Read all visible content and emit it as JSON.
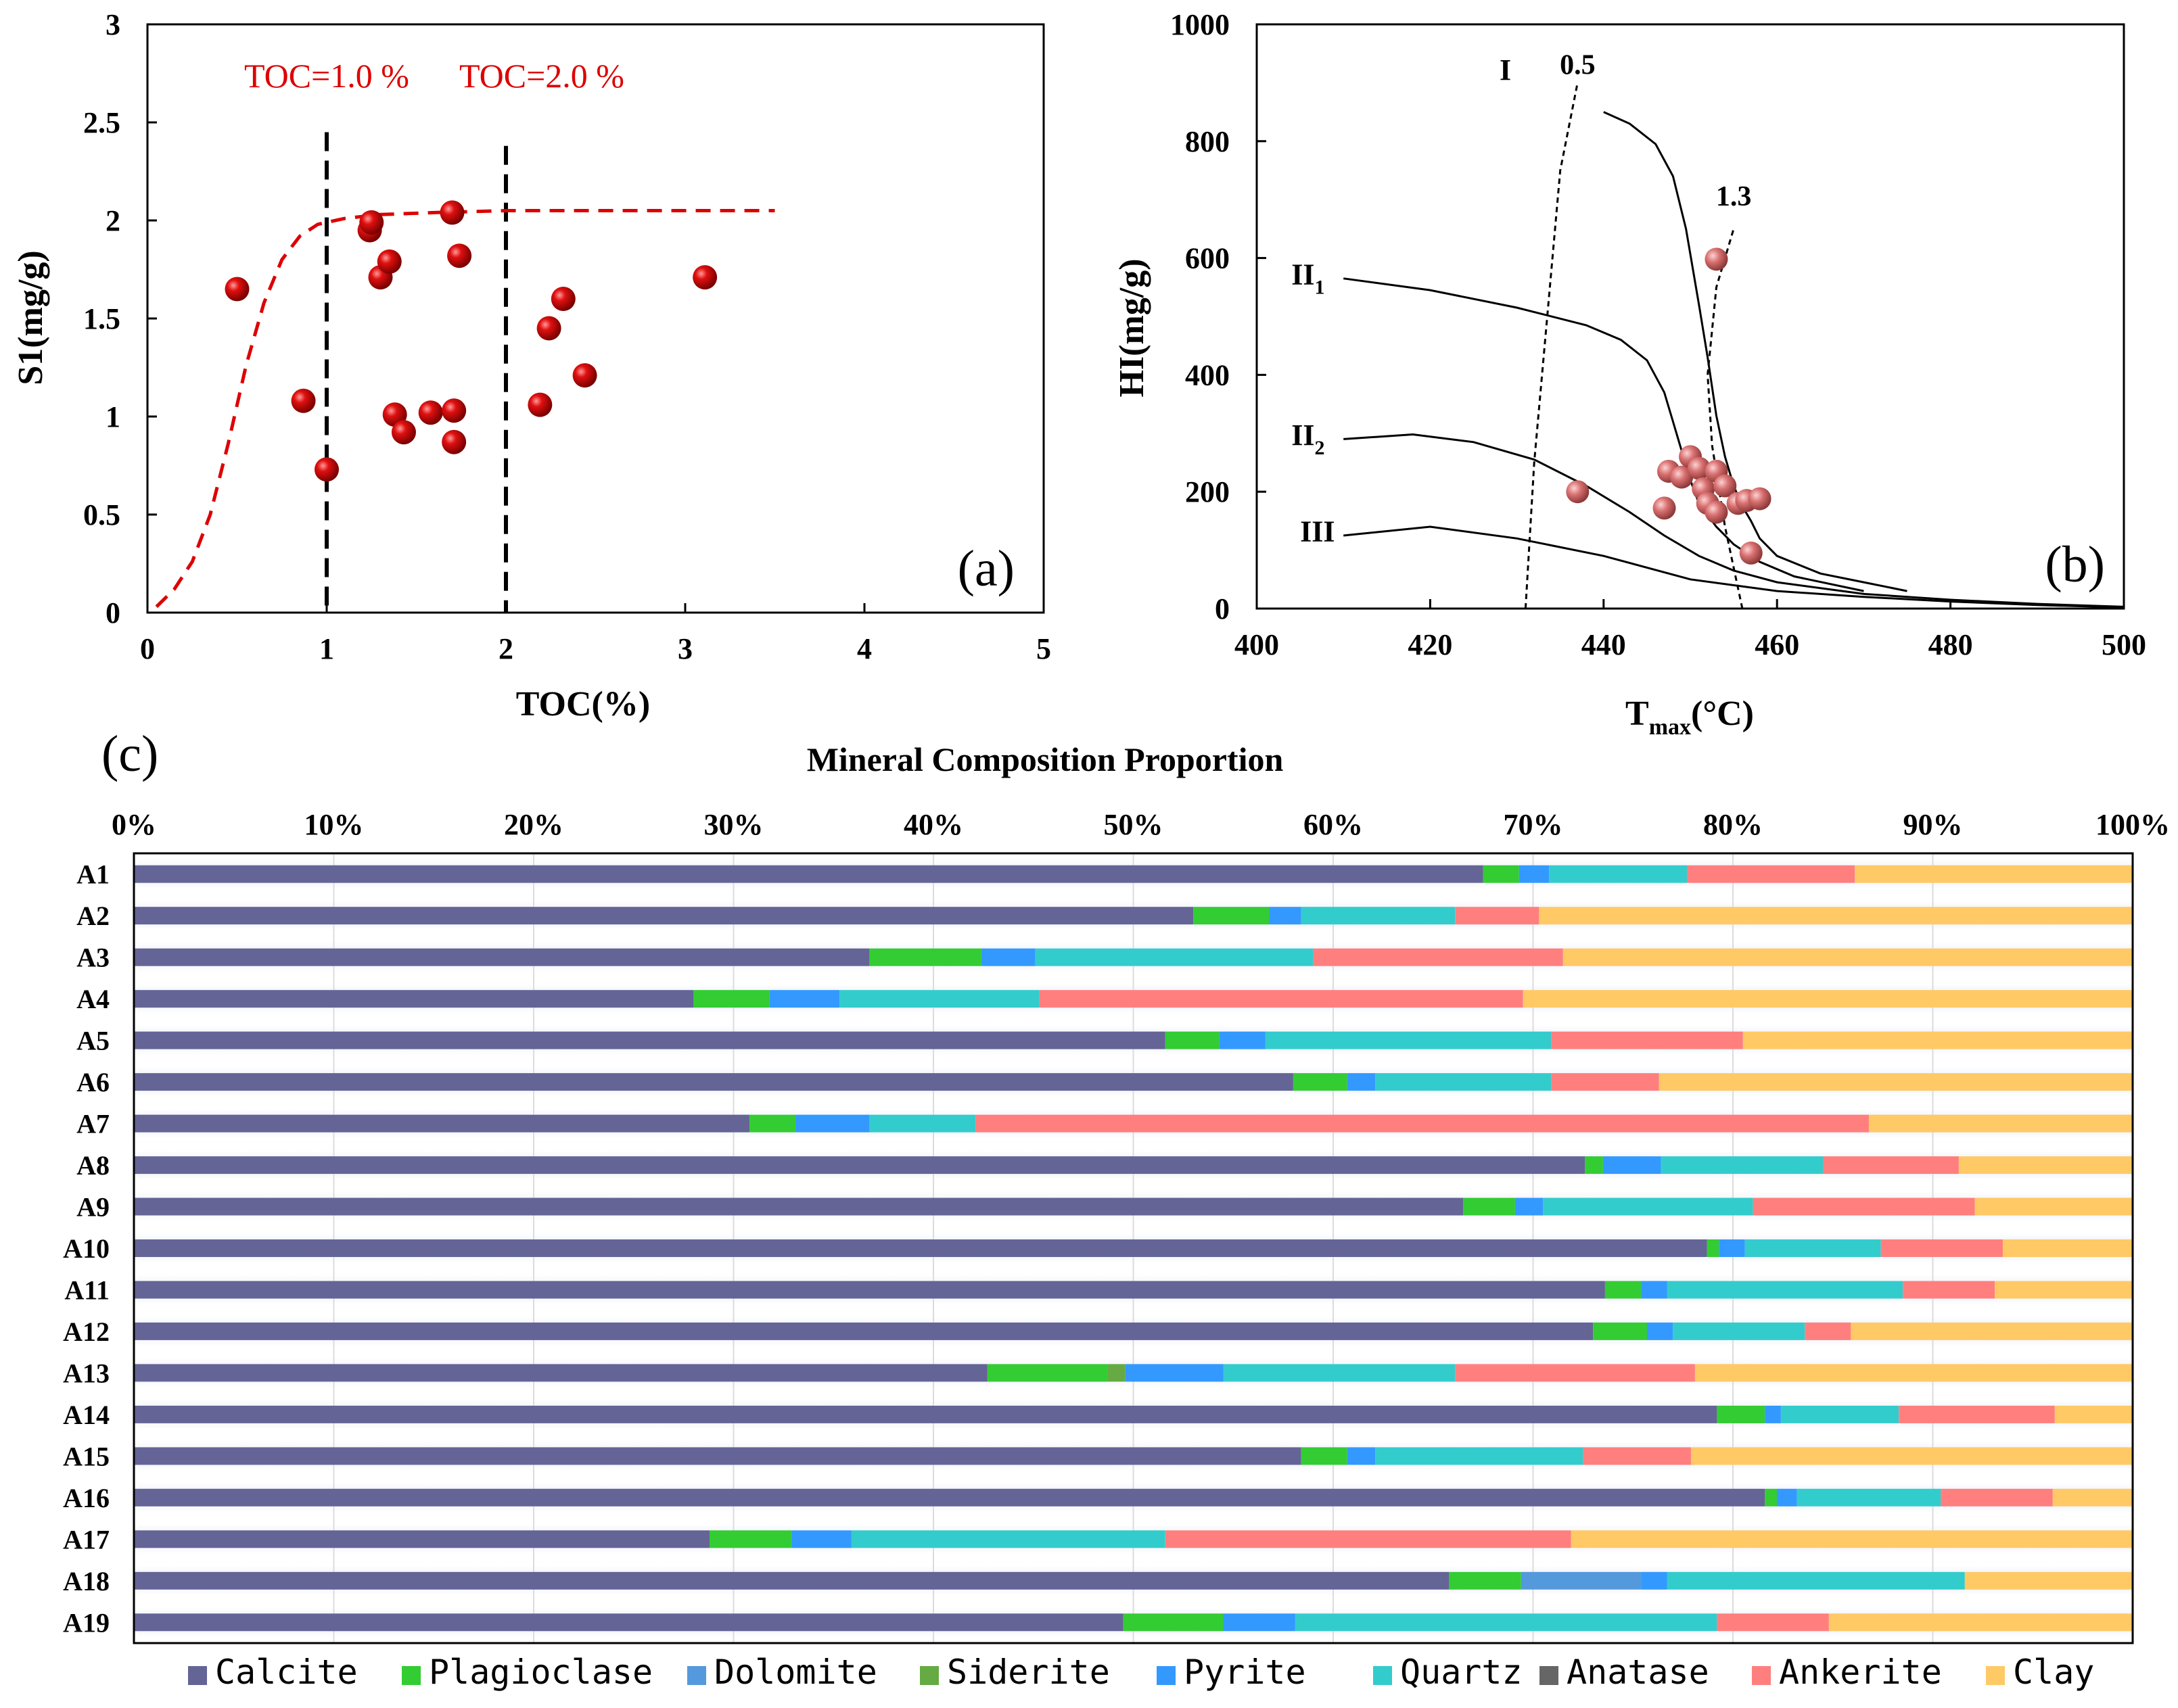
{
  "colors": {
    "Calcite": "#646496",
    "Plagioclase": "#33CC33",
    "Dolomite": "#5599DD",
    "Siderite": "#66AA44",
    "Pyrite": "#3399FF",
    "Quartz": "#33CCCC",
    "Anatase": "#666666",
    "Ankerite": "#FF7F7F",
    "Clay": "#FFC966",
    "scatter_red": "#DD0000",
    "scatter_pink": "#D97070"
  },
  "chart_data": [
    {
      "id": "a",
      "type": "scatter",
      "panel_label": "(a)",
      "title": "",
      "xlabel": "TOC(%)",
      "ylabel": "S1(mg/g)",
      "xlim": [
        0,
        5
      ],
      "ylim": [
        0,
        3
      ],
      "xticks": [
        "0",
        "1",
        "2",
        "3",
        "4",
        "5"
      ],
      "yticks": [
        "0",
        "0.5",
        "1",
        "1.5",
        "2",
        "2.5",
        "3"
      ],
      "annotations": [
        {
          "text": "TOC=1.0 %",
          "x": 1.0,
          "y": 2.68,
          "align": "center"
        },
        {
          "text": "TOC=2.0 %",
          "x": 2.2,
          "y": 2.68,
          "align": "center"
        }
      ],
      "vlines": [
        1.0,
        2.0
      ],
      "trend_curve": [
        [
          0.05,
          0.03
        ],
        [
          0.15,
          0.12
        ],
        [
          0.25,
          0.26
        ],
        [
          0.35,
          0.5
        ],
        [
          0.45,
          0.86
        ],
        [
          0.55,
          1.26
        ],
        [
          0.65,
          1.58
        ],
        [
          0.75,
          1.8
        ],
        [
          0.85,
          1.92
        ],
        [
          0.95,
          1.98
        ],
        [
          1.1,
          2.01
        ],
        [
          1.3,
          2.03
        ],
        [
          1.6,
          2.04
        ],
        [
          2.0,
          2.05
        ],
        [
          2.5,
          2.05
        ],
        [
          3.0,
          2.05
        ],
        [
          3.5,
          2.05
        ]
      ],
      "points": [
        {
          "x": 0.5,
          "y": 1.65
        },
        {
          "x": 0.87,
          "y": 1.08
        },
        {
          "x": 1.0,
          "y": 0.73
        },
        {
          "x": 1.24,
          "y": 1.95
        },
        {
          "x": 1.25,
          "y": 1.99
        },
        {
          "x": 1.3,
          "y": 1.71
        },
        {
          "x": 1.35,
          "y": 1.79
        },
        {
          "x": 1.38,
          "y": 1.01
        },
        {
          "x": 1.43,
          "y": 0.92
        },
        {
          "x": 1.58,
          "y": 1.02
        },
        {
          "x": 1.7,
          "y": 2.04
        },
        {
          "x": 1.71,
          "y": 1.03
        },
        {
          "x": 1.71,
          "y": 0.87
        },
        {
          "x": 1.74,
          "y": 1.82
        },
        {
          "x": 2.19,
          "y": 1.06
        },
        {
          "x": 2.24,
          "y": 1.45
        },
        {
          "x": 2.32,
          "y": 1.6
        },
        {
          "x": 2.44,
          "y": 1.21
        },
        {
          "x": 3.11,
          "y": 1.71
        }
      ]
    },
    {
      "id": "b",
      "type": "scatter",
      "panel_label": "(b)",
      "title": "",
      "xlabel": "Tmax(°C)",
      "xlabel_main": "T",
      "xlabel_sub": "max",
      "xlabel_tail": "(°C)",
      "ylabel": "HI(mg/g)",
      "xlim": [
        400,
        500
      ],
      "ylim": [
        0,
        1000
      ],
      "xticks": [
        "400",
        "420",
        "440",
        "460",
        "480",
        "500"
      ],
      "yticks": [
        "0",
        "200",
        "400",
        "600",
        "800",
        "1000"
      ],
      "type_labels": [
        {
          "text": "I",
          "sub": "",
          "x": 428,
          "y": 905
        },
        {
          "text": "II",
          "sub": "1",
          "x": 404,
          "y": 555
        },
        {
          "text": "II",
          "sub": "2",
          "x": 404,
          "y": 280
        },
        {
          "text": "III",
          "sub": "",
          "x": 405,
          "y": 115
        }
      ],
      "ro_labels": [
        {
          "text": "0.5",
          "x": 437,
          "y": 915
        },
        {
          "text": "1.3",
          "x": 455,
          "y": 690
        }
      ],
      "curves": [
        {
          "name": "I",
          "points": [
            [
              440,
              850
            ],
            [
              443,
              830
            ],
            [
              446,
              795
            ],
            [
              448,
              740
            ],
            [
              449.5,
              650
            ],
            [
              451,
              520
            ],
            [
              452,
              430
            ],
            [
              453,
              330
            ],
            [
              454,
              260
            ],
            [
              455,
              210
            ],
            [
              456,
              175
            ],
            [
              457,
              150
            ],
            [
              458,
              120
            ],
            [
              460,
              90
            ],
            [
              465,
              60
            ],
            [
              470,
              45
            ],
            [
              475,
              30
            ]
          ]
        },
        {
          "name": "II1",
          "points": [
            [
              410,
              565
            ],
            [
              420,
              545
            ],
            [
              430,
              515
            ],
            [
              438,
              485
            ],
            [
              442,
              460
            ],
            [
              445,
              425
            ],
            [
              447,
              370
            ],
            [
              448,
              320
            ],
            [
              449,
              270
            ],
            [
              450,
              220
            ],
            [
              451,
              180
            ],
            [
              453,
              140
            ],
            [
              455,
              110
            ],
            [
              458,
              80
            ],
            [
              462,
              55
            ],
            [
              470,
              30
            ]
          ]
        },
        {
          "name": "II2",
          "points": [
            [
              410,
              290
            ],
            [
              418,
              298
            ],
            [
              425,
              285
            ],
            [
              432,
              255
            ],
            [
              438,
              210
            ],
            [
              443,
              165
            ],
            [
              447,
              125
            ],
            [
              451,
              90
            ],
            [
              455,
              65
            ],
            [
              460,
              45
            ],
            [
              470,
              25
            ],
            [
              480,
              15
            ],
            [
              490,
              8
            ],
            [
              500,
              3
            ]
          ]
        },
        {
          "name": "III",
          "points": [
            [
              410,
              125
            ],
            [
              420,
              140
            ],
            [
              430,
              120
            ],
            [
              440,
              90
            ],
            [
              450,
              50
            ],
            [
              460,
              30
            ],
            [
              470,
              20
            ],
            [
              480,
              12
            ],
            [
              490,
              6
            ],
            [
              500,
              2
            ]
          ]
        }
      ],
      "ro_lines": [
        {
          "name": "0.5",
          "points": [
            [
              431,
              0
            ],
            [
              432,
              250
            ],
            [
              433.5,
              500
            ],
            [
              435,
              750
            ],
            [
              437,
              900
            ]
          ]
        },
        {
          "name": "1.3",
          "points": [
            [
              456,
              0
            ],
            [
              454,
              140
            ],
            [
              452.5,
              280
            ],
            [
              452,
              400
            ],
            [
              453,
              550
            ],
            [
              455,
              650
            ]
          ]
        }
      ],
      "points": [
        {
          "x": 437,
          "y": 200
        },
        {
          "x": 447,
          "y": 172
        },
        {
          "x": 447.5,
          "y": 235
        },
        {
          "x": 449,
          "y": 225
        },
        {
          "x": 450,
          "y": 260
        },
        {
          "x": 451,
          "y": 240
        },
        {
          "x": 451.5,
          "y": 205
        },
        {
          "x": 452,
          "y": 180
        },
        {
          "x": 453,
          "y": 235
        },
        {
          "x": 453,
          "y": 165
        },
        {
          "x": 454,
          "y": 210
        },
        {
          "x": 455.5,
          "y": 180
        },
        {
          "x": 456.5,
          "y": 185
        },
        {
          "x": 457,
          "y": 95
        },
        {
          "x": 458,
          "y": 188
        },
        {
          "x": 453,
          "y": 598
        }
      ]
    },
    {
      "id": "c",
      "type": "bar",
      "orientation": "horizontal",
      "stacked": true,
      "panel_label": "(c)",
      "title": "Mineral Composition Proportion",
      "xlim": [
        0,
        100
      ],
      "xticks": [
        "0%",
        "10%",
        "20%",
        "30%",
        "40%",
        "50%",
        "60%",
        "70%",
        "80%",
        "90%",
        "100%"
      ],
      "legend_position": "bottom",
      "series_names": [
        "Calcite",
        "Plagioclase",
        "Dolomite",
        "Siderite",
        "Pyrite",
        "Quartz",
        "Anatase",
        "Ankerite",
        "Clay"
      ],
      "categories": [
        "A1",
        "A2",
        "A3",
        "A4",
        "A5",
        "A6",
        "A7",
        "A8",
        "A9",
        "A10",
        "A11",
        "A12",
        "A13",
        "A14",
        "A15",
        "A16",
        "A17",
        "A18",
        "A19"
      ],
      "series": [
        {
          "name": "Calcite",
          "values": [
            67.5,
            53.0,
            36.8,
            28.0,
            51.6,
            58.0,
            30.8,
            72.6,
            66.5,
            78.7,
            73.6,
            73.0,
            42.7,
            79.2,
            58.4,
            81.6,
            28.8,
            65.8,
            49.5
          ]
        },
        {
          "name": "Plagioclase",
          "values": [
            1.8,
            3.8,
            5.6,
            3.8,
            2.7,
            2.7,
            2.3,
            0.9,
            2.6,
            0.6,
            1.8,
            2.7,
            6.0,
            2.4,
            2.3,
            0.6,
            4.1,
            3.6,
            5.0
          ]
        },
        {
          "name": "Dolomite",
          "values": [
            0,
            0,
            0,
            0,
            0,
            0,
            0,
            0,
            0,
            0,
            0,
            0,
            0,
            0,
            0,
            0,
            0,
            6.0,
            0
          ]
        },
        {
          "name": "Siderite",
          "values": [
            0,
            0,
            0,
            0,
            0,
            0,
            0,
            0,
            0,
            0,
            0,
            0,
            0.9,
            0,
            0,
            0,
            0,
            0,
            0
          ]
        },
        {
          "name": "Pyrite",
          "values": [
            1.5,
            1.6,
            2.7,
            3.5,
            2.3,
            1.4,
            3.7,
            2.9,
            1.4,
            1.3,
            1.3,
            1.3,
            4.9,
            0.8,
            1.4,
            1.0,
            3.0,
            1.3,
            3.6
          ]
        },
        {
          "name": "Quartz",
          "values": [
            6.9,
            7.7,
            13.9,
            10.0,
            14.3,
            8.8,
            5.3,
            8.1,
            10.5,
            6.8,
            11.8,
            6.6,
            11.6,
            5.9,
            10.4,
            7.2,
            15.7,
            14.9,
            21.1
          ]
        },
        {
          "name": "Anatase",
          "values": [
            0,
            0,
            0,
            0,
            0,
            0,
            0,
            0,
            0,
            0,
            0,
            0,
            0,
            0,
            0,
            0,
            0,
            0,
            0
          ]
        },
        {
          "name": "Ankerite",
          "values": [
            8.4,
            4.2,
            12.5,
            24.2,
            9.6,
            5.4,
            44.7,
            6.8,
            11.1,
            6.1,
            4.6,
            2.3,
            12.0,
            7.8,
            5.4,
            5.6,
            20.3,
            0,
            5.6
          ]
        },
        {
          "name": "Clay",
          "values": [
            13.9,
            29.7,
            28.5,
            30.5,
            19.5,
            23.7,
            13.2,
            8.7,
            7.9,
            6.5,
            6.9,
            14.1,
            21.9,
            3.9,
            22.1,
            4.0,
            28.1,
            8.4,
            15.2
          ]
        }
      ]
    }
  ]
}
